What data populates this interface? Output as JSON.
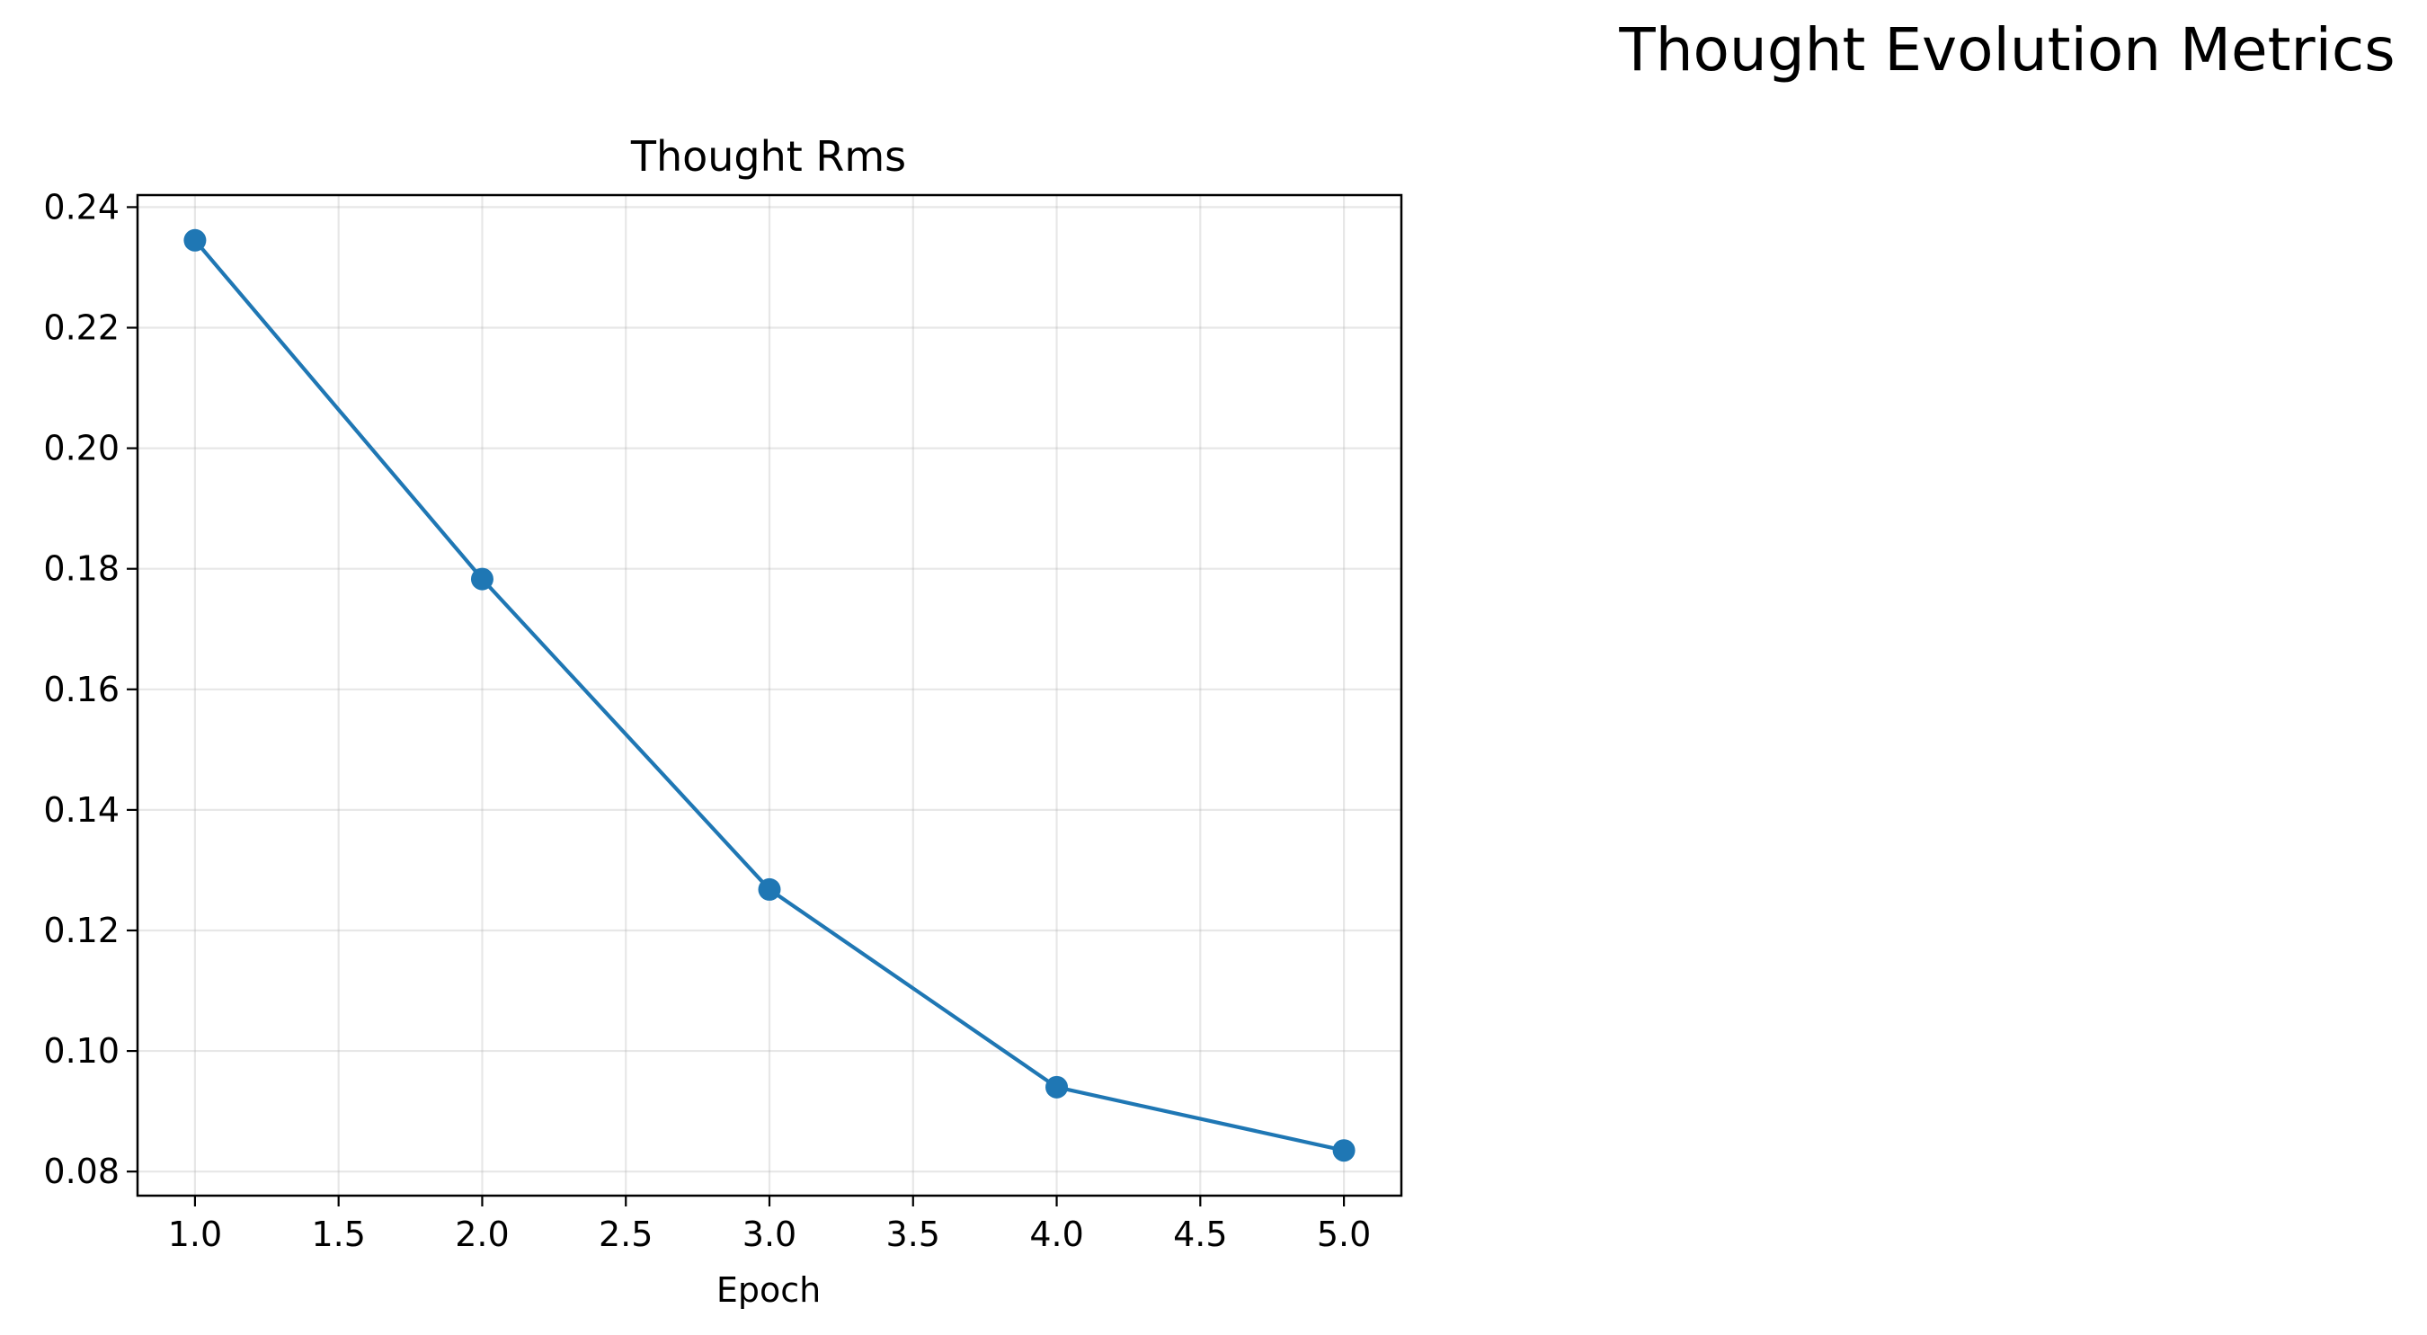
{
  "figure": {
    "suptitle": "Thought Evolution Metrics"
  },
  "chart_data": {
    "type": "line",
    "title": "Thought Rms",
    "xlabel": "Epoch",
    "ylabel": "",
    "xlim": [
      0.8,
      5.2
    ],
    "ylim": [
      0.076,
      0.242
    ],
    "xticks": [
      1.0,
      1.5,
      2.0,
      2.5,
      3.0,
      3.5,
      4.0,
      4.5,
      5.0
    ],
    "xtick_labels": [
      "1.0",
      "1.5",
      "2.0",
      "2.5",
      "3.0",
      "3.5",
      "4.0",
      "4.5",
      "5.0"
    ],
    "yticks": [
      0.08,
      0.1,
      0.12,
      0.14,
      0.16,
      0.18,
      0.2,
      0.22,
      0.24
    ],
    "ytick_labels": [
      "0.08",
      "0.10",
      "0.12",
      "0.14",
      "0.16",
      "0.18",
      "0.20",
      "0.22",
      "0.24"
    ],
    "grid": true,
    "marker": "circle",
    "color": "#1f77b4",
    "series": [
      {
        "x": [
          1,
          2,
          3,
          4,
          5
        ],
        "values": [
          0.2345,
          0.1783,
          0.1268,
          0.094,
          0.0835
        ]
      }
    ]
  }
}
